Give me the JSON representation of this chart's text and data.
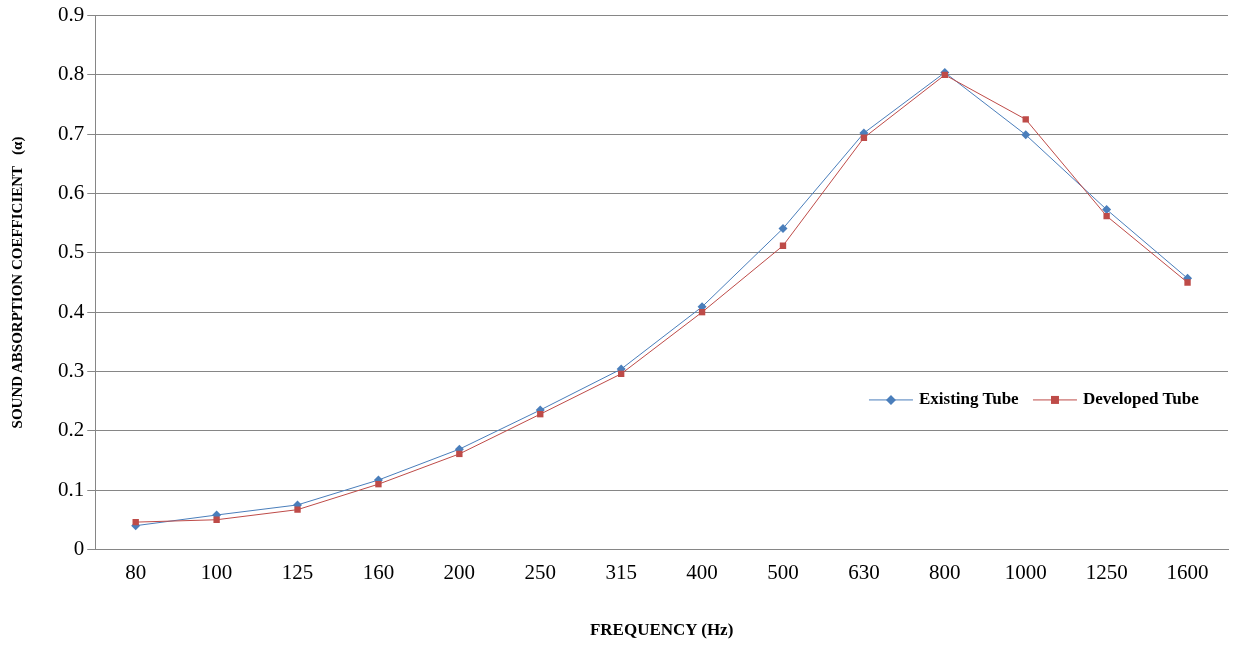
{
  "chart_data": {
    "type": "line",
    "xlabel": "FREQUENCY (Hz)",
    "ylabel": "SOUND ABSORPTION COEFFICIENT   (α)",
    "categories": [
      "80",
      "100",
      "125",
      "160",
      "200",
      "250",
      "315",
      "400",
      "500",
      "630",
      "800",
      "1000",
      "1250",
      "1600"
    ],
    "ylim": [
      0,
      0.9
    ],
    "yticks": [
      0,
      0.1,
      0.2,
      0.3,
      0.4,
      0.5,
      0.6,
      0.7,
      0.8,
      0.9
    ],
    "grid": "y",
    "legend": "right",
    "line_style": "solid",
    "series": [
      {
        "name": "Existing Tube",
        "color": "#4a7ebb",
        "marker": "diamond",
        "values": [
          0.04,
          0.058,
          0.075,
          0.117,
          0.169,
          0.235,
          0.304,
          0.409,
          0.541,
          0.702,
          0.804,
          0.699,
          0.573,
          0.457
        ]
      },
      {
        "name": "Developed Tube",
        "color": "#be4b48",
        "marker": "square",
        "values": [
          0.046,
          0.05,
          0.067,
          0.11,
          0.161,
          0.228,
          0.296,
          0.4,
          0.512,
          0.694,
          0.8,
          0.725,
          0.562,
          0.45
        ]
      }
    ]
  }
}
